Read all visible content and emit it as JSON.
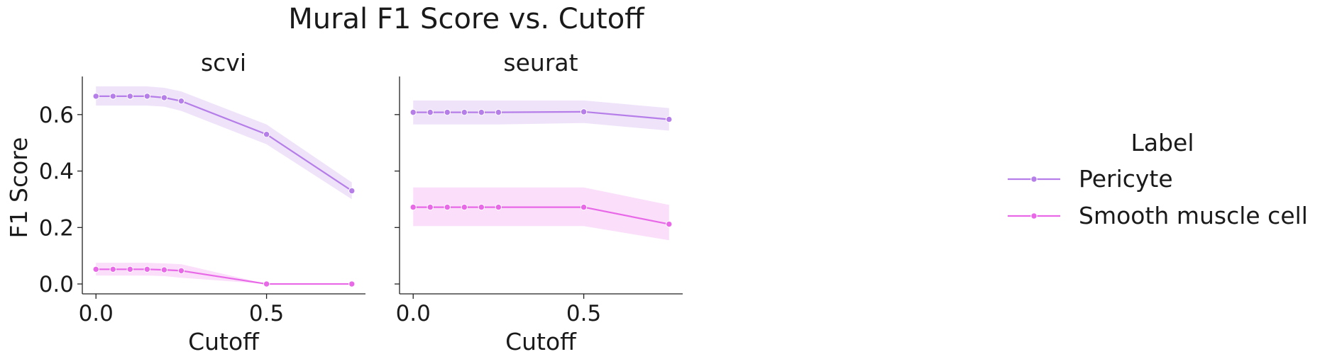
{
  "figure": {
    "title": "Mural F1 Score vs. Cutoff",
    "ylabel": "F1 Score"
  },
  "legend": {
    "title": "Label",
    "placement": "right",
    "items": [
      {
        "label": "Pericyte",
        "color": "#b57ee8"
      },
      {
        "label": "Smooth muscle cell",
        "color": "#e868e8"
      }
    ]
  },
  "chart_data": [
    {
      "type": "line",
      "title": "scvi",
      "xlabel": "Cutoff",
      "ylabel": "F1 Score",
      "xlim": [
        -0.04,
        0.79
      ],
      "ylim": [
        -0.035,
        0.735
      ],
      "xticks": [
        0.0,
        0.5
      ],
      "xtick_labels": [
        "0.0",
        "0.5"
      ],
      "yticks": [
        0.0,
        0.2,
        0.4,
        0.6
      ],
      "ytick_labels": [
        "0.0",
        "0.2",
        "0.4",
        "0.6"
      ],
      "grid": false,
      "x": [
        0.0,
        0.05,
        0.1,
        0.15,
        0.2,
        0.25,
        0.5,
        0.75
      ],
      "series": [
        {
          "name": "Pericyte",
          "color": "#b57ee8",
          "values": [
            0.665,
            0.665,
            0.665,
            0.665,
            0.66,
            0.648,
            0.53,
            0.33
          ],
          "ci_lower": [
            0.632,
            0.632,
            0.632,
            0.632,
            0.628,
            0.613,
            0.495,
            0.3
          ],
          "ci_upper": [
            0.7,
            0.7,
            0.7,
            0.7,
            0.695,
            0.682,
            0.565,
            0.36
          ]
        },
        {
          "name": "Smooth muscle cell",
          "color": "#e868e8",
          "values": [
            0.052,
            0.052,
            0.052,
            0.052,
            0.05,
            0.047,
            0.0,
            0.0
          ],
          "ci_lower": [
            0.03,
            0.03,
            0.03,
            0.03,
            0.028,
            0.022,
            0.0,
            0.0
          ],
          "ci_upper": [
            0.075,
            0.075,
            0.075,
            0.075,
            0.073,
            0.07,
            0.0,
            0.0
          ]
        }
      ]
    },
    {
      "type": "line",
      "title": "seurat",
      "xlabel": "Cutoff",
      "xlim": [
        -0.04,
        0.79
      ],
      "ylim": [
        -0.035,
        0.735
      ],
      "xticks": [
        0.0,
        0.5
      ],
      "xtick_labels": [
        "0.0",
        "0.5"
      ],
      "yticks": [
        0.0,
        0.2,
        0.4,
        0.6
      ],
      "ytick_labels": [
        "",
        "",
        "",
        ""
      ],
      "grid": false,
      "x": [
        0.0,
        0.05,
        0.1,
        0.15,
        0.2,
        0.25,
        0.5,
        0.75
      ],
      "series": [
        {
          "name": "Pericyte",
          "color": "#b57ee8",
          "values": [
            0.608,
            0.608,
            0.608,
            0.608,
            0.608,
            0.608,
            0.61,
            0.583
          ],
          "ci_lower": [
            0.565,
            0.565,
            0.565,
            0.565,
            0.565,
            0.565,
            0.57,
            0.543
          ],
          "ci_upper": [
            0.65,
            0.65,
            0.65,
            0.65,
            0.65,
            0.65,
            0.65,
            0.623
          ]
        },
        {
          "name": "Smooth muscle cell",
          "color": "#e868e8",
          "values": [
            0.272,
            0.272,
            0.272,
            0.272,
            0.272,
            0.272,
            0.272,
            0.212
          ],
          "ci_lower": [
            0.205,
            0.205,
            0.205,
            0.205,
            0.205,
            0.205,
            0.205,
            0.155
          ],
          "ci_upper": [
            0.342,
            0.342,
            0.342,
            0.342,
            0.342,
            0.342,
            0.342,
            0.28
          ]
        }
      ]
    }
  ]
}
